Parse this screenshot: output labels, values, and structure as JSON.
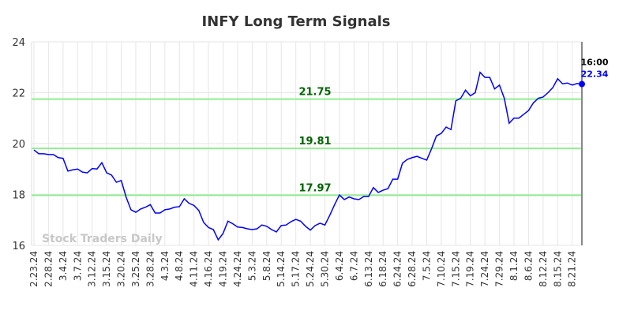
{
  "chart_data": {
    "type": "line",
    "title": "INFY Long Term Signals",
    "watermark": "Stock Traders Daily",
    "categories": [
      "2.23.24",
      null,
      null,
      "2.28.24",
      null,
      null,
      "3.4.24",
      null,
      null,
      "3.7.24",
      null,
      null,
      "3.12.24",
      null,
      null,
      "3.15.24",
      null,
      null,
      "3.20.24",
      null,
      null,
      "3.25.24",
      null,
      null,
      "3.28.24",
      null,
      null,
      "4.3.24",
      null,
      null,
      "4.8.24",
      null,
      null,
      "4.11.24",
      null,
      null,
      "4.16.24",
      null,
      null,
      "4.19.24",
      null,
      null,
      "4.24.24",
      null,
      null,
      "5.3.24",
      null,
      null,
      "5.8.24",
      null,
      null,
      "5.14.24",
      null,
      null,
      "5.17.24",
      null,
      null,
      "5.24.24",
      null,
      null,
      "5.30.24",
      null,
      null,
      "6.4.24",
      null,
      null,
      "6.7.24",
      null,
      null,
      "6.13.24",
      null,
      null,
      "6.18.24",
      null,
      null,
      "6.24.24",
      null,
      null,
      "6.28.24",
      null,
      null,
      "7.5.24",
      null,
      null,
      "7.10.24",
      null,
      null,
      "7.15.24",
      null,
      null,
      "7.19.24",
      null,
      null,
      "7.24.24",
      null,
      null,
      "7.29.24",
      null,
      null,
      "8.1.24",
      null,
      null,
      "8.6.24",
      null,
      null,
      "8.12.24",
      null,
      null,
      "8.15.24",
      null,
      null,
      "8.21.24",
      null,
      null
    ],
    "series": [
      {
        "name": "INFY",
        "color": "#0000ff",
        "values": [
          19.75,
          19.6,
          19.6,
          19.57,
          19.57,
          19.45,
          19.42,
          18.92,
          18.97,
          19.0,
          18.88,
          18.85,
          19.02,
          19.0,
          19.25,
          18.85,
          18.76,
          18.48,
          18.55,
          17.9,
          17.4,
          17.3,
          17.43,
          17.5,
          17.6,
          17.27,
          17.27,
          17.4,
          17.43,
          17.5,
          17.52,
          17.83,
          17.65,
          17.57,
          17.37,
          16.9,
          16.7,
          16.62,
          16.22,
          16.47,
          16.95,
          16.85,
          16.72,
          16.7,
          16.65,
          16.62,
          16.65,
          16.8,
          16.75,
          16.62,
          16.53,
          16.78,
          16.8,
          16.93,
          17.02,
          16.95,
          16.75,
          16.6,
          16.78,
          16.87,
          16.8,
          17.18,
          17.6,
          17.98,
          17.8,
          17.9,
          17.83,
          17.8,
          17.92,
          17.92,
          18.27,
          18.08,
          18.17,
          18.23,
          18.6,
          18.6,
          19.23,
          19.38,
          19.45,
          19.5,
          19.42,
          19.35,
          19.8,
          20.3,
          20.4,
          20.65,
          20.55,
          21.68,
          21.78,
          22.1,
          21.88,
          22.0,
          22.8,
          22.6,
          22.6,
          22.15,
          22.3,
          21.78,
          20.8,
          21.0,
          21.0,
          21.15,
          21.3,
          21.6,
          21.78,
          21.83,
          22.0,
          22.2,
          22.55,
          22.35,
          22.38,
          22.3,
          22.36,
          22.34
        ]
      }
    ],
    "levels": [
      21.75,
      19.81,
      17.97
    ],
    "level_color": "#90ee90",
    "level_label_color": "#006400",
    "last_time": "16:00",
    "ylim": [
      16,
      24
    ],
    "yticks": [
      16,
      18,
      20,
      22,
      24
    ],
    "grid": true
  }
}
